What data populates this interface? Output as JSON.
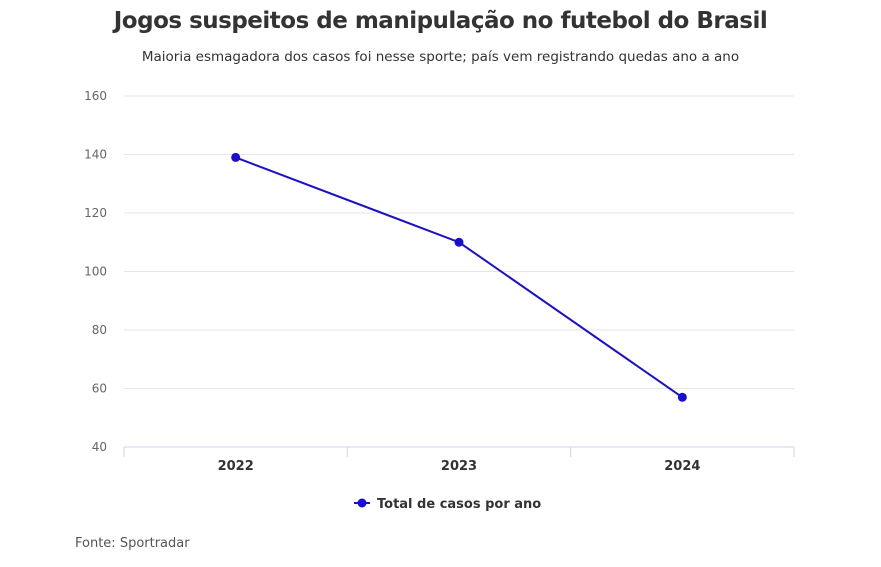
{
  "chart_data": {
    "type": "line",
    "title": "Jogos suspeitos de manipulação no futebol do Brasil",
    "subtitle": "Maioria esmagadora dos casos foi nesse sporte; país vem registrando quedas ano a ano",
    "categories": [
      "2022",
      "2023",
      "2024"
    ],
    "series": [
      {
        "name": "Total de casos por ano",
        "values": [
          139,
          110,
          57
        ],
        "color": "#1a0fd0"
      }
    ],
    "ylim": [
      40,
      160
    ],
    "yticks": [
      40,
      60,
      80,
      100,
      120,
      140,
      160
    ],
    "xlabel": "",
    "ylabel": "",
    "grid": true,
    "legend": "bottom-center",
    "source": "Fonte: Sportradar"
  }
}
